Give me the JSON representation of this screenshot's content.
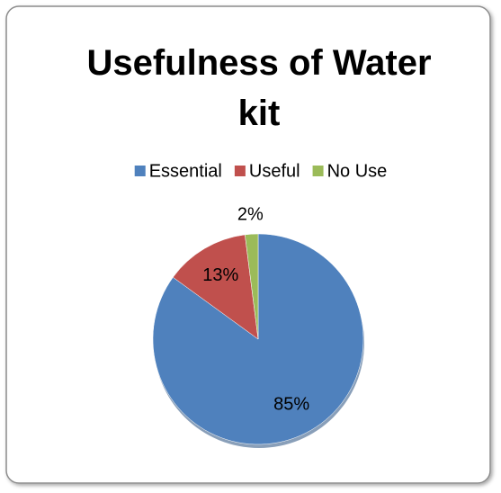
{
  "chart_data": {
    "type": "pie",
    "title": "Usefulness of Water kit",
    "categories": [
      "Essential",
      "Useful",
      "No Use"
    ],
    "values": [
      85,
      13,
      2
    ],
    "value_labels": [
      "85%",
      "13%",
      "2%"
    ],
    "colors": [
      "#4f81bd",
      "#c0504d",
      "#9bbb59"
    ],
    "legend": "top"
  }
}
